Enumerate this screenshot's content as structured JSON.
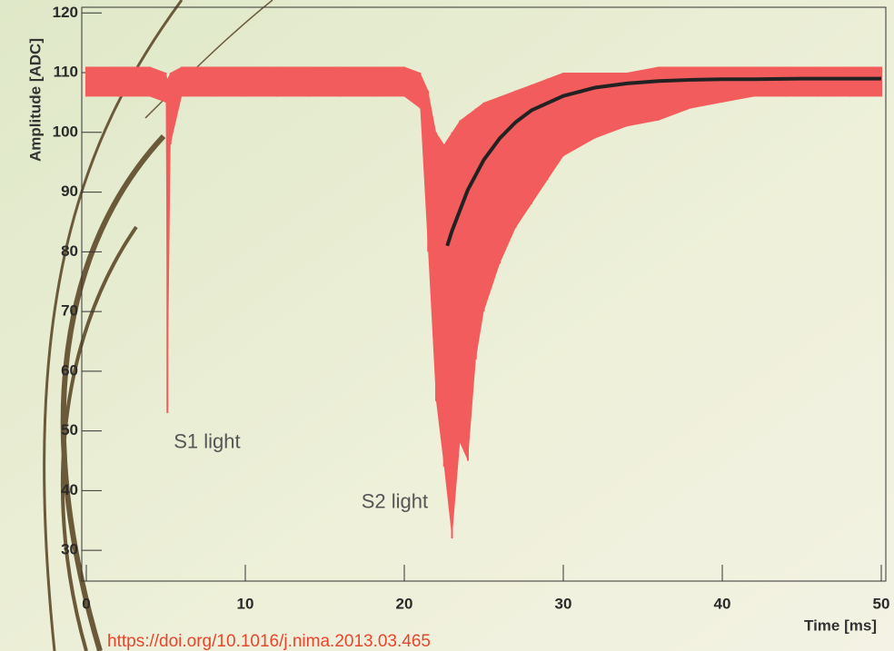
{
  "chart_data": {
    "type": "waveform",
    "xlabel": "Time [ms]",
    "ylabel": "Amplitude [ADC]",
    "annotations": [
      {
        "text": "S1 light",
        "x": 5.5,
        "y": 48
      },
      {
        "text": "S2 light",
        "x": 17.3,
        "y": 38
      }
    ],
    "source": "https://doi.org/10.1016/j.nima.2013.03.465",
    "xlim": [
      0,
      50
    ],
    "ylim": [
      25,
      120.5
    ],
    "xticks": [
      0,
      10,
      20,
      30,
      40,
      50
    ],
    "yticks": [
      30,
      40,
      50,
      60,
      70,
      80,
      90,
      100,
      110,
      120
    ],
    "series": [
      {
        "kind": "range",
        "color": "#f25c5c",
        "x": [
          0,
          2,
          4,
          5,
          5.1,
          5.3,
          6,
          8,
          10,
          12,
          14,
          16,
          18,
          20,
          21,
          21.5,
          22,
          22.5,
          23,
          23.5,
          24,
          24.5,
          25,
          26,
          27,
          28,
          29,
          30,
          32,
          34,
          36,
          38,
          40,
          42,
          44,
          46,
          48,
          50
        ],
        "low": [
          106,
          106,
          106,
          105,
          53,
          98,
          106,
          106,
          106,
          106,
          106,
          106,
          106,
          106,
          104,
          80,
          55,
          44,
          32,
          48,
          45,
          62,
          70,
          78,
          84,
          88,
          92,
          96,
          99,
          101,
          102,
          104,
          105,
          106,
          106,
          106,
          106,
          106
        ],
        "high": [
          111,
          111,
          111,
          110,
          109,
          110,
          111,
          111,
          111,
          111,
          111,
          111,
          111,
          111,
          110,
          107,
          100,
          98,
          100,
          102,
          103,
          104,
          105,
          106,
          107,
          108,
          109,
          110,
          110,
          110,
          111,
          111,
          111,
          111,
          111,
          111,
          111,
          111
        ]
      },
      {
        "kind": "line",
        "color": "#222222",
        "x": [
          22.7,
          23,
          24,
          25,
          26,
          27,
          28,
          30,
          32,
          34,
          36,
          38,
          40,
          42,
          45,
          48,
          50
        ],
        "values": [
          81,
          83.5,
          90.4,
          95.4,
          99,
          101.7,
          103.7,
          106.1,
          107.5,
          108.2,
          108.6,
          108.8,
          108.9,
          108.9,
          109,
          109,
          109
        ]
      }
    ]
  }
}
